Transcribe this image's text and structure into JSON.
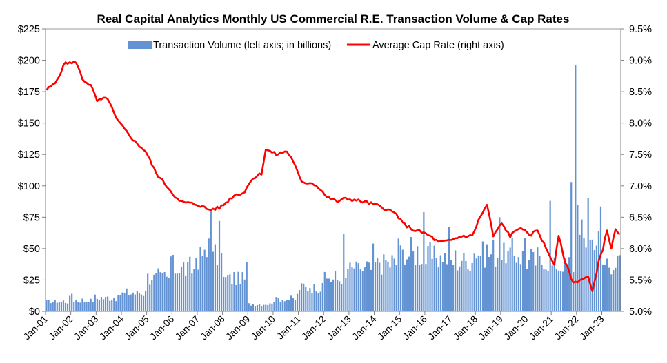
{
  "chart_data": {
    "type": "bar+line",
    "title": "Real Capital Analytics Monthly US Commercial R.E.  Transaction Volume & Cap Rates",
    "legend": {
      "placement": "top-center",
      "entries": [
        {
          "name": "Transaction Volume (left axis; in billions)",
          "kind": "bar",
          "color": "#6393d2"
        },
        {
          "name": "Average Cap Rate (right axis)",
          "kind": "line",
          "color": "#ff0000"
        }
      ]
    },
    "x_axis": {
      "start": "Jan-01",
      "months": 273,
      "tick_labels": [
        "Jan-01",
        "Jan-02",
        "Jan-03",
        "Jan-04",
        "Jan-05",
        "Jan-06",
        "Jan-07",
        "Jan-08",
        "Jan-09",
        "Jan-10",
        "Jan-11",
        "Jan-12",
        "Jan-13",
        "Jan-14",
        "Jan-15",
        "Jan-16",
        "Jan-17",
        "Jan-18",
        "Jan-19",
        "Jan-20",
        "Jan-21",
        "Jan-22",
        "Jan-23"
      ]
    },
    "y_left": {
      "range": [
        0,
        225
      ],
      "step": 25,
      "tick_labels": [
        "$0",
        "$25",
        "$50",
        "$75",
        "$100",
        "$125",
        "$150",
        "$175",
        "$200",
        "$225"
      ]
    },
    "y_right": {
      "range": [
        5.0,
        9.5
      ],
      "step": 0.5,
      "tick_labels": [
        "5.0%",
        "5.5%",
        "6.0%",
        "6.5%",
        "7.0%",
        "7.5%",
        "8.0%",
        "8.5%",
        "9.0%",
        "9.5%"
      ]
    },
    "volume_yearly_base": [
      8,
      9,
      11,
      15,
      28,
      35,
      45,
      27,
      6,
      10,
      20,
      27,
      35,
      40,
      48,
      45,
      42,
      48,
      47,
      42,
      38,
      60,
      40
    ],
    "volume_2023_base": 30,
    "volume_spikes": [
      {
        "x": "Jan-02",
        "value": 14
      },
      {
        "x": "Jan-05",
        "value": 30
      },
      {
        "x": "Jan-06",
        "value": 45
      },
      {
        "x": "Jul-07",
        "value": 80
      },
      {
        "x": "Jun-07",
        "value": 58
      },
      {
        "x": "Nov-07",
        "value": 72
      },
      {
        "x": "Oct-12",
        "value": 62
      },
      {
        "x": "Dec-15",
        "value": 79
      },
      {
        "x": "Dec-14",
        "value": 58
      },
      {
        "x": "Dec-18",
        "value": 75
      },
      {
        "x": "Dec-20",
        "value": 88
      },
      {
        "x": "Oct-21",
        "value": 103
      },
      {
        "x": "Dec-21",
        "value": 196
      },
      {
        "x": "Jun-22",
        "value": 90
      },
      {
        "x": "Jan-22",
        "value": 85
      }
    ],
    "cap_rate_series": [
      {
        "x": "Jan-01",
        "value": 8.53
      },
      {
        "x": "May-01",
        "value": 8.63
      },
      {
        "x": "Oct-01",
        "value": 8.97
      },
      {
        "x": "Jan-02",
        "value": 8.95
      },
      {
        "x": "Mar-02",
        "value": 8.98
      },
      {
        "x": "Jun-02",
        "value": 8.7
      },
      {
        "x": "Oct-02",
        "value": 8.6
      },
      {
        "x": "Jan-03",
        "value": 8.35
      },
      {
        "x": "Jun-03",
        "value": 8.4
      },
      {
        "x": "Oct-03",
        "value": 8.07
      },
      {
        "x": "Feb-04",
        "value": 7.9
      },
      {
        "x": "Jul-04",
        "value": 7.7
      },
      {
        "x": "Dec-04",
        "value": 7.55
      },
      {
        "x": "May-05",
        "value": 7.2
      },
      {
        "x": "Oct-05",
        "value": 7.0
      },
      {
        "x": "Apr-06",
        "value": 6.75
      },
      {
        "x": "Jan-07",
        "value": 6.7
      },
      {
        "x": "Jun-07",
        "value": 6.62
      },
      {
        "x": "Nov-07",
        "value": 6.65
      },
      {
        "x": "Jan-08",
        "value": 6.7
      },
      {
        "x": "Jun-08",
        "value": 6.85
      },
      {
        "x": "Nov-08",
        "value": 6.9
      },
      {
        "x": "Feb-09",
        "value": 7.1
      },
      {
        "x": "Jul-09",
        "value": 7.2
      },
      {
        "x": "Sep-09",
        "value": 7.58
      },
      {
        "x": "Feb-10",
        "value": 7.5
      },
      {
        "x": "Jul-10",
        "value": 7.55
      },
      {
        "x": "Oct-10",
        "value": 7.4
      },
      {
        "x": "Feb-11",
        "value": 7.05
      },
      {
        "x": "Jul-11",
        "value": 7.05
      },
      {
        "x": "Nov-11",
        "value": 6.95
      },
      {
        "x": "Feb-12",
        "value": 6.82
      },
      {
        "x": "Jul-12",
        "value": 6.75
      },
      {
        "x": "Nov-12",
        "value": 6.8
      },
      {
        "x": "Feb-13",
        "value": 6.78
      },
      {
        "x": "Jul-13",
        "value": 6.75
      },
      {
        "x": "Jan-14",
        "value": 6.7
      },
      {
        "x": "Jul-14",
        "value": 6.62
      },
      {
        "x": "Nov-14",
        "value": 6.55
      },
      {
        "x": "Feb-15",
        "value": 6.4
      },
      {
        "x": "Jul-15",
        "value": 6.3
      },
      {
        "x": "Dec-15",
        "value": 6.25
      },
      {
        "x": "Mar-16",
        "value": 6.2
      },
      {
        "x": "Jul-16",
        "value": 6.1
      },
      {
        "x": "Dec-16",
        "value": 6.12
      },
      {
        "x": "Jun-17",
        "value": 6.2
      },
      {
        "x": "Nov-17",
        "value": 6.2
      },
      {
        "x": "Feb-18",
        "value": 6.45
      },
      {
        "x": "Jun-18",
        "value": 6.7
      },
      {
        "x": "Sep-18",
        "value": 6.2
      },
      {
        "x": "Jan-19",
        "value": 6.4
      },
      {
        "x": "May-19",
        "value": 6.2
      },
      {
        "x": "Oct-19",
        "value": 6.35
      },
      {
        "x": "Feb-20",
        "value": 6.2
      },
      {
        "x": "Jun-20",
        "value": 6.3
      },
      {
        "x": "Oct-20",
        "value": 6.0
      },
      {
        "x": "Feb-21",
        "value": 5.75
      },
      {
        "x": "Apr-21",
        "value": 6.2
      },
      {
        "x": "Jul-21",
        "value": 5.8
      },
      {
        "x": "Nov-21",
        "value": 5.45
      },
      {
        "x": "Feb-22",
        "value": 5.5
      },
      {
        "x": "Jun-22",
        "value": 5.55
      },
      {
        "x": "Aug-22",
        "value": 5.3
      },
      {
        "x": "Nov-22",
        "value": 5.8
      },
      {
        "x": "Jan-23",
        "value": 6.0
      },
      {
        "x": "Mar-23",
        "value": 6.3
      },
      {
        "x": "May-23",
        "value": 6.0
      },
      {
        "x": "Jul-23",
        "value": 6.3
      },
      {
        "x": "Sep-23",
        "value": 6.2
      }
    ]
  }
}
